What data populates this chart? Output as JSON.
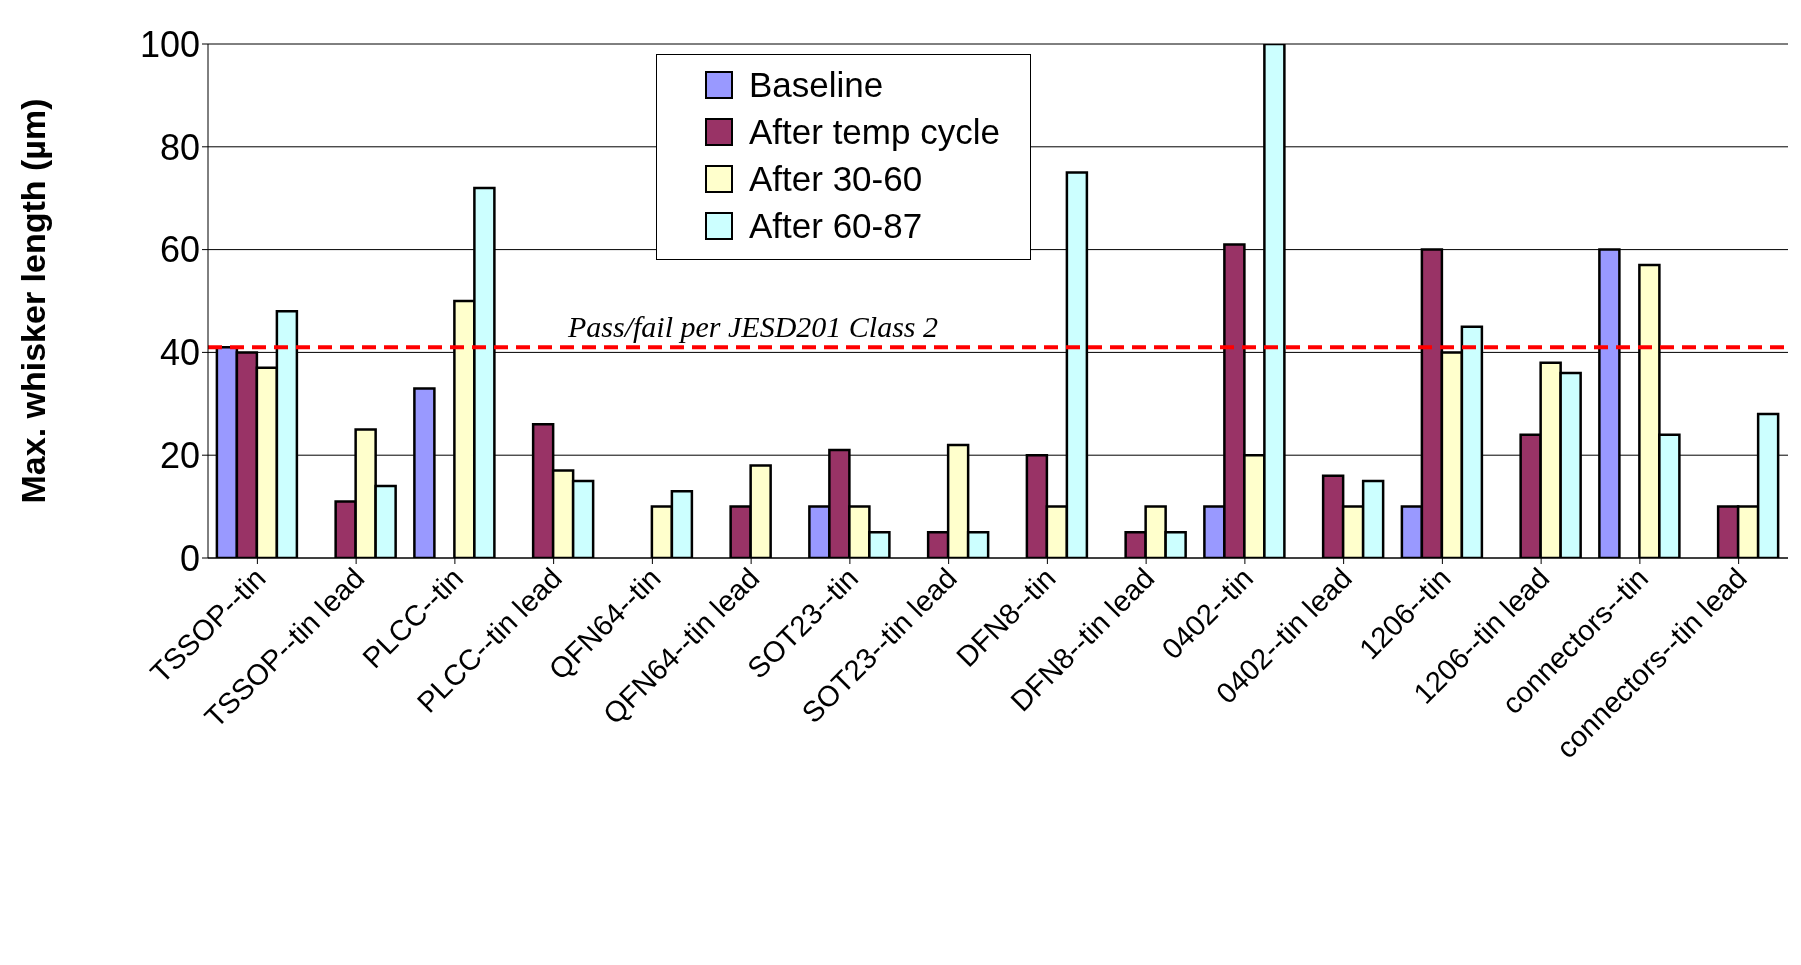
{
  "chart_data": {
    "type": "bar",
    "ylabel": "Max. whisker length (µm)",
    "categories": [
      "TSSOP--tin",
      "TSSOP--tin lead",
      "PLCC--tin",
      "PLCC--tin lead",
      "QFN64--tin",
      "QFN64--tin lead",
      "SOT23--tin",
      "SOT23--tin lead",
      "DFN8--tin",
      "DFN8--tin lead",
      "0402--tin",
      "0402--tin lead",
      "1206--tin",
      "1206--tin lead",
      "connectors--tin",
      "connectors--tin lead"
    ],
    "series": [
      {
        "name": "Baseline",
        "color": "#9999ff",
        "values": [
          41,
          null,
          33,
          null,
          null,
          null,
          10,
          null,
          null,
          null,
          10,
          null,
          10,
          null,
          60,
          null
        ]
      },
      {
        "name": "After temp cycle",
        "color": "#993366",
        "values": [
          40,
          11,
          null,
          26,
          null,
          10,
          21,
          5,
          20,
          5,
          61,
          16,
          60,
          24,
          null,
          10
        ]
      },
      {
        "name": "After 30-60",
        "color": "#ffffcc",
        "values": [
          37,
          25,
          50,
          17,
          10,
          18,
          10,
          22,
          10,
          10,
          20,
          10,
          40,
          38,
          57,
          10
        ]
      },
      {
        "name": "After 60-87",
        "color": "#ccffff",
        "values": [
          48,
          14,
          72,
          15,
          13,
          null,
          5,
          5,
          75,
          5,
          100,
          15,
          45,
          36,
          24,
          28
        ]
      }
    ],
    "ylim": [
      0,
      100
    ],
    "yticks": [
      0,
      20,
      40,
      60,
      80,
      100
    ],
    "grid": "y",
    "legend": "top",
    "ref_lines": [
      {
        "axis": "y",
        "value": 41,
        "label": "Pass/fail per JESD201 Class 2",
        "color": "#ff0000",
        "line_style": "dashed"
      }
    ]
  }
}
